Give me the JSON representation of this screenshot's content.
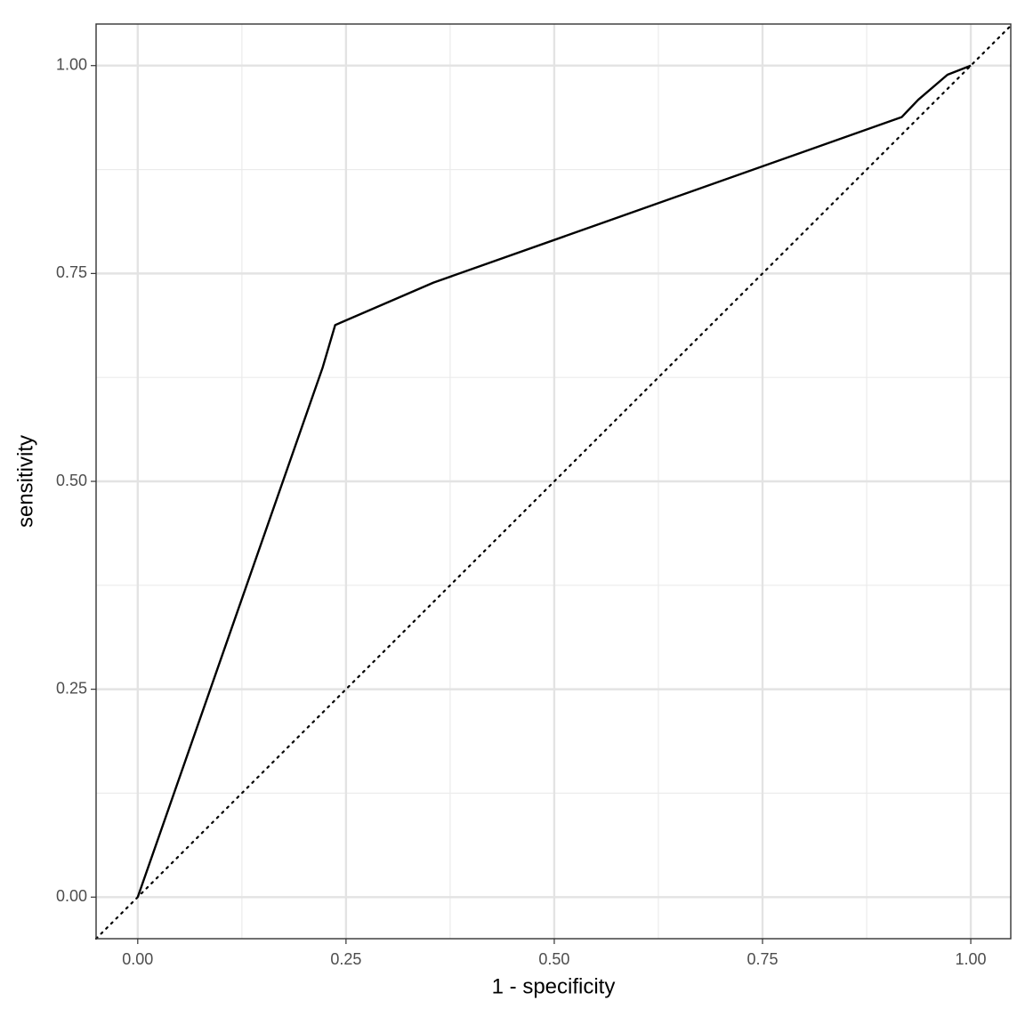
{
  "chart_data": {
    "type": "line",
    "x_label": "1 - specificity",
    "y_label": "sensitivity",
    "x": [
      0,
      0.222,
      0.237,
      0.355,
      0.917,
      0.937,
      0.972,
      1
    ],
    "series": [
      {
        "color": "#000000",
        "values": [
          0,
          0.637,
          0.688,
          0.739,
          0.938,
          0.959,
          0.989,
          1
        ]
      }
    ],
    "xlim": [
      -0.05,
      1.048
    ],
    "ylim": [
      -0.05,
      1.05
    ],
    "xticks": [
      {
        "value": 0,
        "label": "0.00"
      },
      {
        "value": 0.25,
        "label": "0.25"
      },
      {
        "value": 0.5,
        "label": "0.50"
      },
      {
        "value": 0.75,
        "label": "0.75"
      },
      {
        "value": 1,
        "label": "1.00"
      }
    ],
    "yticks": [
      {
        "value": 0,
        "label": "0.00"
      },
      {
        "value": 0.25,
        "label": "0.25"
      },
      {
        "value": 0.5,
        "label": "0.50"
      },
      {
        "value": 0.75,
        "label": "0.75"
      },
      {
        "value": 1,
        "label": "1.00"
      }
    ],
    "minor_ticks": [
      0.125,
      0.375,
      0.625,
      0.875
    ],
    "grid": true
  }
}
